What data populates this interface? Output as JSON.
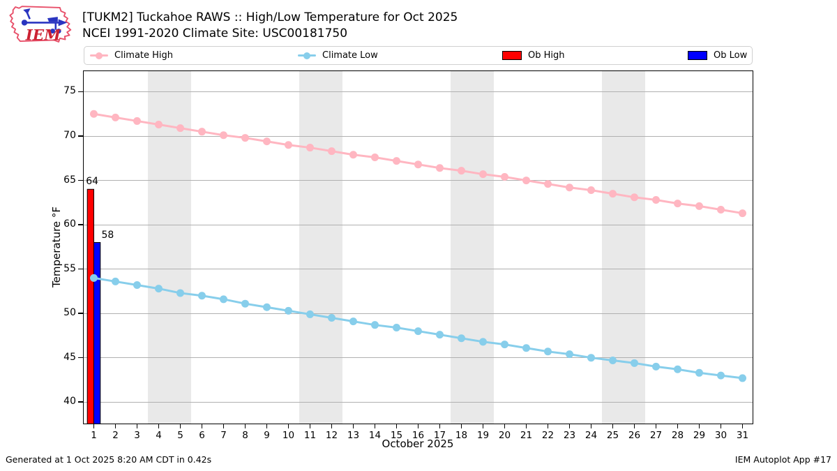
{
  "header": {
    "title_line1": "[TUKM2] Tuckahoe RAWS :: High/Low Temperature for Oct 2025",
    "title_line2": "NCEI 1991-2020 Climate Site: USC00181750"
  },
  "logo": {
    "text": "IEM"
  },
  "legend": {
    "items": [
      {
        "label": "Climate High",
        "swatch": "line-dot",
        "color": "#ffb6c1"
      },
      {
        "label": "Climate Low",
        "swatch": "line-dot",
        "color": "#87ceeb"
      },
      {
        "label": "Ob High",
        "swatch": "rect",
        "color": "#ff0000"
      },
      {
        "label": "Ob Low",
        "swatch": "rect",
        "color": "#0000ff"
      }
    ]
  },
  "chart_data": {
    "type": "line+bar",
    "title": "[TUKM2] Tuckahoe RAWS :: High/Low Temperature for Oct 2025",
    "subtitle": "NCEI 1991-2020 Climate Site: USC00181750",
    "xlabel": "October 2025",
    "ylabel": "Temperature °F",
    "xlim": [
      0.5,
      31.5
    ],
    "ylim": [
      37.5,
      77.4
    ],
    "yticks": [
      40,
      45,
      50,
      55,
      60,
      65,
      70,
      75
    ],
    "days": [
      1,
      2,
      3,
      4,
      5,
      6,
      7,
      8,
      9,
      10,
      11,
      12,
      13,
      14,
      15,
      16,
      17,
      18,
      19,
      20,
      21,
      22,
      23,
      24,
      25,
      26,
      27,
      28,
      29,
      30,
      31
    ],
    "grid": "horizontal",
    "grid_color": "#b0b0b0",
    "weekend_band_color": "#e9e9e9",
    "weekend_bands": [
      [
        3.5,
        5.5
      ],
      [
        10.5,
        12.5
      ],
      [
        17.5,
        19.5
      ],
      [
        24.5,
        26.5
      ]
    ],
    "series": [
      {
        "name": "Climate High",
        "type": "line",
        "color": "#ffb6c1",
        "values": [
          72.5,
          72.1,
          71.7,
          71.3,
          70.9,
          70.5,
          70.1,
          69.8,
          69.4,
          69.0,
          68.7,
          68.3,
          67.9,
          67.6,
          67.2,
          66.8,
          66.4,
          66.1,
          65.7,
          65.4,
          65.0,
          64.6,
          64.2,
          63.9,
          63.5,
          63.1,
          62.8,
          62.4,
          62.1,
          61.7,
          61.3
        ]
      },
      {
        "name": "Climate Low",
        "type": "line",
        "color": "#87ceeb",
        "values": [
          54.0,
          53.6,
          53.2,
          52.8,
          52.3,
          52.0,
          51.6,
          51.1,
          50.7,
          50.3,
          49.9,
          49.5,
          49.1,
          48.7,
          48.4,
          48.0,
          47.6,
          47.2,
          46.8,
          46.5,
          46.1,
          45.7,
          45.4,
          45.0,
          44.7,
          44.4,
          44.0,
          43.7,
          43.3,
          43.0,
          42.7
        ]
      },
      {
        "name": "Ob High",
        "type": "bar",
        "color": "#ff0000",
        "bar_span": [
          -0.3,
          0
        ],
        "points": [
          {
            "day": 1,
            "value": 64,
            "label": "64"
          }
        ]
      },
      {
        "name": "Ob Low",
        "type": "bar",
        "color": "#0000ff",
        "bar_span": [
          0,
          0.3
        ],
        "points": [
          {
            "day": 1,
            "value": 58,
            "label": "58"
          }
        ]
      }
    ],
    "legend_position": "top, horizontal, 4 columns"
  },
  "footer": {
    "left": "Generated at 1 Oct 2025 8:20 AM CDT in 0.42s",
    "right": "IEM Autoplot App #17"
  }
}
